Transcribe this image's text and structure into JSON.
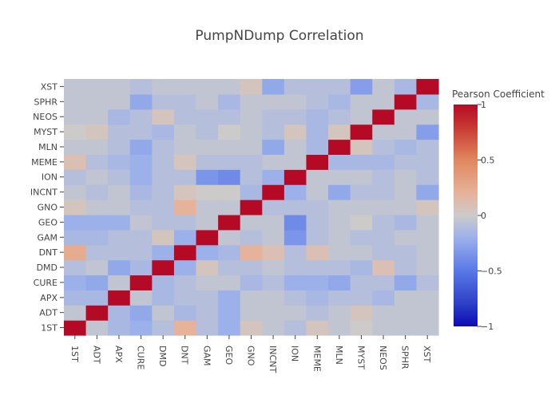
{
  "chart_data": {
    "type": "heatmap",
    "title": "PumpNDump Correlation",
    "xlabel": "",
    "ylabel": "",
    "x_categories": [
      "1ST",
      "ADT",
      "APX",
      "CURE",
      "DMD",
      "DNT",
      "GAM",
      "GEO",
      "GNO",
      "INCNT",
      "ION",
      "MEME",
      "MLN",
      "MYST",
      "NEOS",
      "SPHR",
      "XST"
    ],
    "y_categories": [
      "1ST",
      "ADT",
      "APX",
      "CURE",
      "DMD",
      "DNT",
      "GAM",
      "GEO",
      "GNO",
      "INCNT",
      "ION",
      "MEME",
      "MLN",
      "MYST",
      "NEOS",
      "SPHR",
      "XST"
    ],
    "z": [
      [
        1,
        -0.05,
        -0.15,
        -0.2,
        -0.1,
        0.2,
        -0.1,
        -0.2,
        0.05,
        -0.05,
        -0.1,
        0.05,
        -0.05,
        0,
        -0.05,
        -0.05,
        -0.05
      ],
      [
        -0.05,
        1,
        -0.15,
        -0.25,
        -0.05,
        -0.15,
        -0.1,
        -0.2,
        -0.05,
        -0.05,
        -0.05,
        -0.1,
        -0.05,
        0.05,
        -0.05,
        -0.05,
        -0.05
      ],
      [
        -0.15,
        -0.15,
        1,
        -0.05,
        -0.15,
        -0.1,
        -0.1,
        -0.2,
        -0.05,
        -0.05,
        -0.1,
        -0.15,
        -0.1,
        -0.1,
        -0.15,
        -0.05,
        -0.05
      ],
      [
        -0.2,
        -0.25,
        -0.05,
        1,
        -0.15,
        -0.1,
        -0.05,
        -0.05,
        -0.15,
        -0.1,
        -0.2,
        -0.2,
        -0.25,
        -0.1,
        -0.1,
        -0.25,
        -0.1
      ],
      [
        -0.1,
        -0.05,
        -0.25,
        -0.15,
        1,
        -0.2,
        0.05,
        -0.1,
        -0.1,
        -0.05,
        -0.1,
        -0.1,
        -0.1,
        -0.15,
        0.1,
        -0.1,
        -0.05
      ],
      [
        0.25,
        -0.1,
        -0.1,
        -0.1,
        -0.2,
        1,
        -0.2,
        -0.15,
        0.2,
        0.1,
        -0.1,
        0.1,
        -0.05,
        -0.05,
        -0.1,
        -0.1,
        -0.05
      ],
      [
        -0.15,
        -0.15,
        -0.1,
        -0.1,
        0.05,
        -0.2,
        1,
        -0.05,
        -0.1,
        -0.05,
        -0.35,
        -0.1,
        -0.05,
        -0.1,
        -0.1,
        -0.05,
        -0.05
      ],
      [
        -0.2,
        -0.2,
        -0.2,
        -0.05,
        -0.1,
        -0.1,
        -0.05,
        1,
        -0.05,
        -0.05,
        -0.4,
        -0.1,
        -0.05,
        0,
        -0.1,
        -0.15,
        -0.05
      ],
      [
        0.05,
        -0.05,
        -0.05,
        -0.1,
        -0.1,
        0.2,
        -0.05,
        -0.05,
        1,
        -0.1,
        -0.1,
        -0.1,
        -0.05,
        -0.05,
        -0.05,
        -0.05,
        0.05
      ],
      [
        -0.05,
        -0.1,
        -0.05,
        -0.15,
        -0.1,
        0.05,
        0,
        0,
        -0.15,
        1,
        -0.2,
        -0.05,
        -0.25,
        -0.1,
        -0.1,
        -0.05,
        -0.25
      ],
      [
        -0.1,
        -0.05,
        -0.1,
        -0.2,
        -0.1,
        -0.1,
        -0.35,
        -0.4,
        -0.1,
        -0.2,
        1,
        -0.05,
        -0.05,
        -0.05,
        -0.1,
        -0.05,
        -0.1
      ],
      [
        0.1,
        -0.1,
        -0.15,
        -0.2,
        -0.1,
        0.05,
        -0.1,
        -0.1,
        -0.1,
        -0.05,
        -0.05,
        1,
        -0.15,
        -0.15,
        -0.15,
        -0.1,
        -0.1
      ],
      [
        -0.05,
        -0.05,
        -0.1,
        -0.25,
        -0.1,
        -0.05,
        -0.05,
        -0.05,
        -0.05,
        -0.25,
        -0.05,
        -0.15,
        1,
        0.05,
        -0.1,
        -0.15,
        -0.1
      ],
      [
        0,
        0.05,
        -0.1,
        -0.1,
        -0.15,
        -0.05,
        -0.1,
        0,
        -0.05,
        -0.1,
        0.05,
        -0.15,
        0.05,
        1,
        -0.05,
        -0.05,
        -0.3
      ],
      [
        -0.05,
        -0.05,
        -0.15,
        -0.1,
        0.05,
        -0.1,
        -0.1,
        -0.1,
        -0.05,
        -0.1,
        -0.1,
        -0.15,
        -0.1,
        -0.05,
        1,
        -0.05,
        -0.05
      ],
      [
        -0.05,
        -0.05,
        -0.05,
        -0.25,
        -0.1,
        -0.1,
        -0.05,
        -0.15,
        -0.05,
        -0.05,
        -0.05,
        -0.1,
        -0.15,
        -0.05,
        -0.05,
        1,
        -0.15
      ],
      [
        -0.05,
        -0.05,
        -0.05,
        -0.1,
        -0.05,
        -0.05,
        -0.05,
        -0.05,
        0.05,
        -0.25,
        -0.1,
        -0.1,
        -0.1,
        -0.3,
        -0.05,
        -0.15,
        1
      ]
    ],
    "zmin": -1,
    "zmax": 1,
    "colorscale": [
      [
        0,
        "#0b0bb4"
      ],
      [
        0.1,
        "#2c3fc6"
      ],
      [
        0.25,
        "#5a78e6"
      ],
      [
        0.4,
        "#9cb1ea"
      ],
      [
        0.5,
        "#cdcbca"
      ],
      [
        0.6,
        "#e6b39a"
      ],
      [
        0.75,
        "#e0875f"
      ],
      [
        0.9,
        "#c73833"
      ],
      [
        1,
        "#b50a26"
      ]
    ],
    "colorbar": {
      "title": "Pearson Coefficient",
      "ticks": [
        1,
        0.5,
        0,
        -0.5,
        -1
      ],
      "tick_labels": [
        "1",
        "0.5",
        "0",
        "−0.5",
        "−1"
      ]
    },
    "grid": false,
    "legend": "right"
  }
}
